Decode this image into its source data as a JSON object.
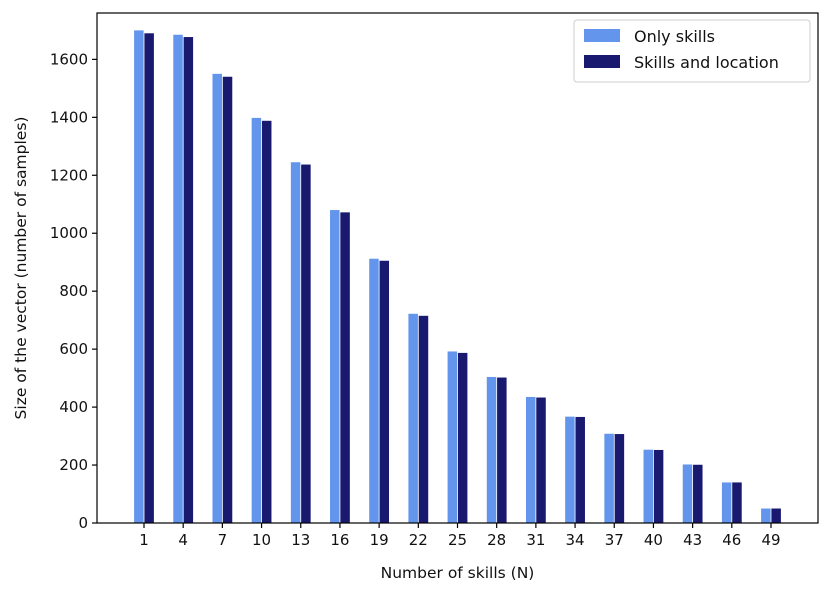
{
  "chart_data": {
    "type": "bar",
    "title": "",
    "xlabel": "Number of skills (N)",
    "ylabel": "Size of the vector (number of samples)",
    "ylim": [
      0,
      1760
    ],
    "yticks": [
      0,
      200,
      400,
      600,
      800,
      1000,
      1200,
      1400,
      1600
    ],
    "categories": [
      "1",
      "4",
      "7",
      "10",
      "13",
      "16",
      "19",
      "22",
      "25",
      "28",
      "31",
      "34",
      "37",
      "40",
      "43",
      "46",
      "49"
    ],
    "series": [
      {
        "name": "Only skills",
        "color": "#6495ED",
        "values": [
          1700,
          1685,
          1550,
          1398,
          1245,
          1080,
          912,
          722,
          592,
          504,
          435,
          367,
          308,
          253,
          202,
          140,
          50
        ]
      },
      {
        "name": "Skills and location",
        "color": "#191970",
        "values": [
          1690,
          1677,
          1540,
          1388,
          1237,
          1072,
          905,
          715,
          587,
          502,
          433,
          366,
          307,
          252,
          201,
          140,
          50
        ]
      }
    ],
    "legend": {
      "position": "top-right"
    },
    "grid": false
  }
}
